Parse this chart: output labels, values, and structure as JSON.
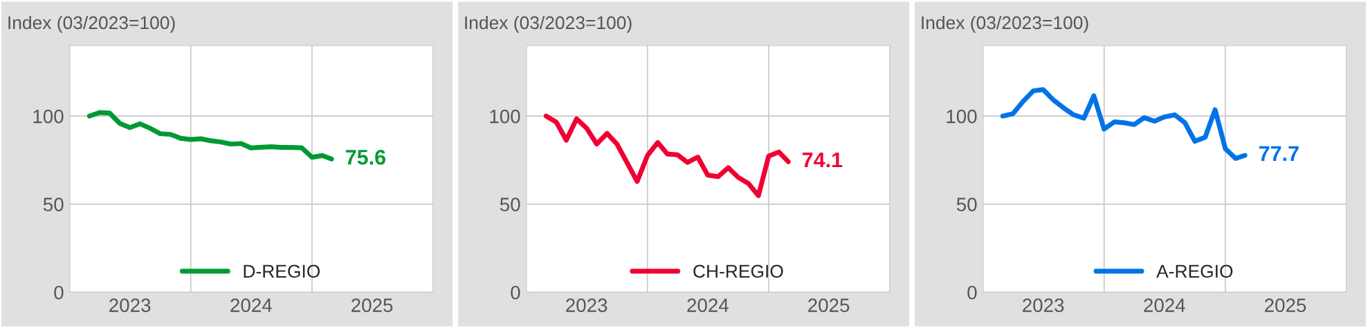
{
  "chart_data": [
    {
      "type": "line",
      "title": "Index (03/2023=100)",
      "x": [
        "2023-03",
        "2023-04",
        "2023-05",
        "2023-06",
        "2023-07",
        "2023-08",
        "2023-09",
        "2023-10",
        "2023-11",
        "2023-12",
        "2024-01",
        "2024-02",
        "2024-03",
        "2024-04",
        "2024-05",
        "2024-06",
        "2024-07",
        "2024-08",
        "2024-09",
        "2024-10",
        "2024-11",
        "2024-12",
        "2025-01",
        "2025-02",
        "2025-03"
      ],
      "series": [
        {
          "name": "D-REGIO",
          "color": "#009a34",
          "values": [
            100,
            102,
            101.7,
            95.8,
            93.5,
            95.6,
            93,
            90,
            89.6,
            87.4,
            86.7,
            87.1,
            86,
            85.3,
            84.1,
            84.4,
            81.9,
            82.3,
            82.6,
            82.2,
            82.2,
            82,
            76.6,
            77.6,
            75.6
          ]
        }
      ],
      "annotations": [
        {
          "text": "75.6",
          "x": "2025-03",
          "y": 75.6
        }
      ],
      "xlim": [
        "2023-01",
        "2026-01"
      ],
      "ylim": [
        0,
        140
      ],
      "yticks": [
        0,
        50,
        100
      ],
      "xticks": [
        {
          "value": "2023-07",
          "label": "2023"
        },
        {
          "value": "2024-01",
          "label": null
        },
        {
          "value": "2024-07",
          "label": "2024"
        },
        {
          "value": "2025-01",
          "label": null
        },
        {
          "value": "2025-07",
          "label": "2025"
        }
      ],
      "grid": true,
      "legend": "bottom",
      "marker": "none",
      "line_style": "solid"
    },
    {
      "type": "line",
      "title": "Index (03/2023=100)",
      "x": [
        "2023-03",
        "2023-04",
        "2023-05",
        "2023-06",
        "2023-07",
        "2023-08",
        "2023-09",
        "2023-10",
        "2023-11",
        "2023-12",
        "2024-01",
        "2024-02",
        "2024-03",
        "2024-04",
        "2024-05",
        "2024-06",
        "2024-07",
        "2024-08",
        "2024-09",
        "2024-10",
        "2024-11",
        "2024-12",
        "2025-01",
        "2025-02",
        "2025-03"
      ],
      "series": [
        {
          "name": "CH-REGIO",
          "color": "#f00032",
          "values": [
            100,
            96.5,
            86.3,
            98.4,
            93.2,
            84.1,
            90.2,
            84.1,
            73.3,
            62.9,
            77.6,
            85,
            78.5,
            78,
            73.7,
            76.7,
            66.5,
            65.6,
            70.7,
            65.2,
            61.7,
            54.8,
            77.3,
            79.6,
            74.1
          ]
        }
      ],
      "annotations": [
        {
          "text": "74.1",
          "x": "2025-03",
          "y": 74.1
        }
      ],
      "xlim": [
        "2023-01",
        "2026-01"
      ],
      "ylim": [
        0,
        140
      ],
      "yticks": [
        0,
        50,
        100
      ],
      "xticks": [
        {
          "value": "2023-07",
          "label": "2023"
        },
        {
          "value": "2024-01",
          "label": null
        },
        {
          "value": "2024-07",
          "label": "2024"
        },
        {
          "value": "2025-01",
          "label": null
        },
        {
          "value": "2025-07",
          "label": "2025"
        }
      ],
      "grid": true,
      "legend": "bottom",
      "marker": "none",
      "line_style": "solid"
    },
    {
      "type": "line",
      "title": "Index (03/2023=100)",
      "x": [
        "2023-03",
        "2023-04",
        "2023-05",
        "2023-06",
        "2023-07",
        "2023-08",
        "2023-09",
        "2023-10",
        "2023-11",
        "2023-12",
        "2024-01",
        "2024-02",
        "2024-03",
        "2024-04",
        "2024-05",
        "2024-06",
        "2024-07",
        "2024-08",
        "2024-09",
        "2024-10",
        "2024-11",
        "2024-12",
        "2025-01",
        "2025-02",
        "2025-03"
      ],
      "series": [
        {
          "name": "A-REGIO",
          "color": "#0073e6",
          "values": [
            100,
            101.4,
            108.2,
            114.3,
            115,
            109.1,
            104.6,
            100.7,
            98.8,
            111.5,
            92.6,
            96.7,
            96.2,
            95.2,
            99.1,
            97.1,
            99.5,
            100.7,
            96.2,
            85.7,
            88,
            103.6,
            81.5,
            75.9,
            77.7
          ]
        }
      ],
      "annotations": [
        {
          "text": "77.7",
          "x": "2025-03",
          "y": 77.7
        }
      ],
      "xlim": [
        "2023-01",
        "2026-01"
      ],
      "ylim": [
        0,
        140
      ],
      "yticks": [
        0,
        50,
        100
      ],
      "xticks": [
        {
          "value": "2023-07",
          "label": "2023"
        },
        {
          "value": "2024-01",
          "label": null
        },
        {
          "value": "2024-07",
          "label": "2024"
        },
        {
          "value": "2025-01",
          "label": null
        },
        {
          "value": "2025-07",
          "label": "2025"
        }
      ],
      "grid": true,
      "legend": "bottom",
      "marker": "none",
      "line_style": "solid"
    }
  ]
}
